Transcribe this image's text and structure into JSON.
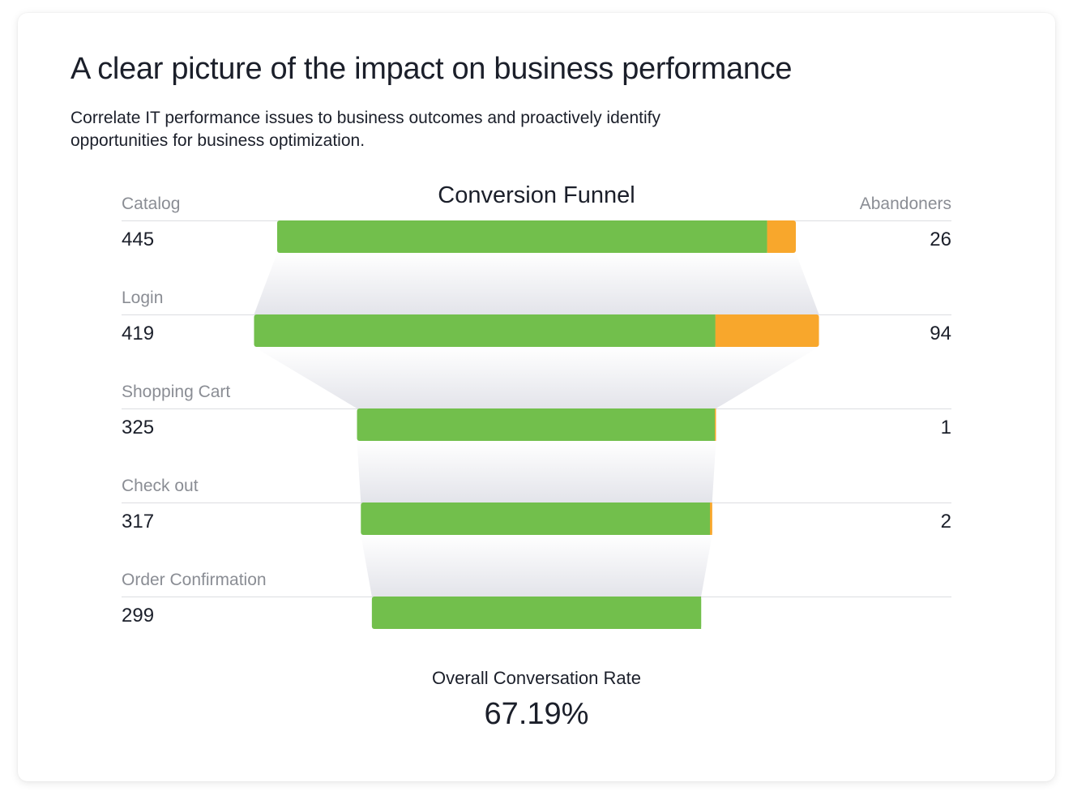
{
  "header": {
    "title": "A clear picture of the impact on business performance",
    "subtitle": "Correlate IT performance issues to business outcomes and proactively identify opportunities for business optimization."
  },
  "chart_data": {
    "type": "bar",
    "title": "Conversion Funnel",
    "left_header": "",
    "right_header": "Abandoners",
    "categories": [
      "Catalog",
      "Login",
      "Shopping Cart",
      "Check out",
      "Order Confirmation"
    ],
    "series": [
      {
        "name": "",
        "values": [
          445,
          419,
          325,
          317,
          299
        ]
      },
      {
        "name": "Abandoners",
        "values": [
          26,
          94,
          1,
          2,
          null
        ]
      }
    ],
    "abandoner_labels": [
      "26",
      "94",
      "1",
      "2",
      ""
    ],
    "colors": {
      "conversions": "#72bf4c",
      "abandoners": "#f8a72c",
      "funnel_fill": "#e6e7ed",
      "divider": "#dcdde1"
    }
  },
  "summary": {
    "label": "Overall Conversation Rate",
    "value": "67.19%"
  }
}
